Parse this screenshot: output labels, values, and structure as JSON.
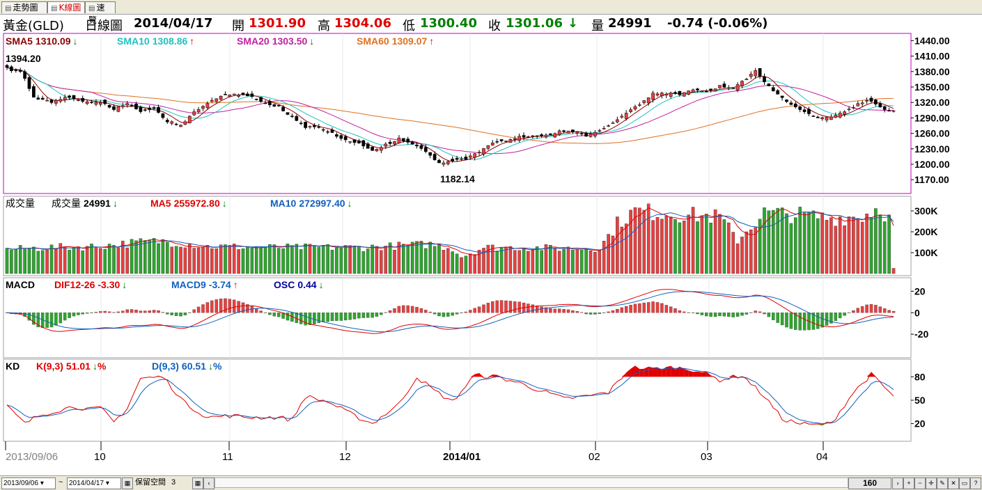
{
  "tabs": [
    {
      "label": "走勢圖",
      "active": false
    },
    {
      "label": "K線圖",
      "active": true
    },
    {
      "label": "速覽",
      "active": false
    }
  ],
  "header": {
    "symbol": "黃金(GLD)",
    "chart_type": "日線圖",
    "date": "2014/04/17",
    "open_label": "開",
    "open": "1301.90",
    "high_label": "高",
    "high": "1304.06",
    "low_label": "低",
    "low": "1300.40",
    "close_label": "收",
    "close": "1301.06",
    "close_arrow": "↓",
    "volume_label": "量",
    "volume": "24991",
    "change": "-0.74 (-0.06%)"
  },
  "colors": {
    "up": "#e84040",
    "down": "#000000",
    "vol_up": "#e84040",
    "vol_down": "#2ea62e",
    "sma5": "#8b0000",
    "sma10": "#20c0c0",
    "sma20": "#c020a0",
    "sma60": "#e07020",
    "frame": "#c000c0",
    "dif": "#e00000",
    "macd9": "#1060c0",
    "osc": "#0000a0",
    "k": "#e00000",
    "d": "#1060c0"
  },
  "price_panel": {
    "legend": [
      {
        "label": "SMA5",
        "value": "1310.09",
        "arrow": "↓"
      },
      {
        "label": "SMA10",
        "value": "1308.86",
        "arrow": "↑"
      },
      {
        "label": "SMA20",
        "value": "1303.50",
        "arrow": "↓"
      },
      {
        "label": "SMA60",
        "value": "1309.07",
        "arrow": "↑"
      }
    ],
    "high_marker": "1394.20",
    "low_marker": "1182.14"
  },
  "volume_panel": {
    "title": "成交量",
    "legend": [
      {
        "label": "成交量",
        "value": "24991",
        "arrow": "↓"
      },
      {
        "label": "MA5",
        "value": "255972.80",
        "arrow": "↓"
      },
      {
        "label": "MA10",
        "value": "272997.40",
        "arrow": "↓"
      }
    ]
  },
  "macd_panel": {
    "title": "MACD",
    "legend": [
      {
        "label": "DIF12-26",
        "value": "-3.30",
        "arrow": "↓"
      },
      {
        "label": "MACD9",
        "value": "-3.74",
        "arrow": "↑"
      },
      {
        "label": "OSC",
        "value": "0.44",
        "arrow": "↓"
      }
    ]
  },
  "kd_panel": {
    "title": "KD",
    "legend": [
      {
        "label": "K(9,3)",
        "value": "51.01",
        "arrow": "↓",
        "suffix": "%"
      },
      {
        "label": "D(9,3)",
        "value": "60.51",
        "arrow": "↓",
        "suffix": "%"
      }
    ]
  },
  "bottom": {
    "start_date": "2013/09/06",
    "end_date": "2014/04/17",
    "tilde": "~",
    "reserve_label": "保留空間",
    "reserve_value": "3",
    "count": "160"
  },
  "chart_data": {
    "type": "candlestick",
    "title": "黃金(GLD) 日線圖",
    "x_labels": [
      "2013/09/06",
      "10",
      "11",
      "12",
      "2014/01",
      "02",
      "03",
      "04"
    ],
    "price_axis": {
      "ylim": [
        1150,
        1450
      ],
      "ticks": [
        "1440.00",
        "1410.00",
        "1380.00",
        "1350.00",
        "1320.00",
        "1290.00",
        "1260.00",
        "1230.00",
        "1200.00",
        "1170.00"
      ]
    },
    "volume_axis": {
      "ylim": [
        0,
        360000
      ],
      "ticks": [
        "300K",
        "200K",
        "100K"
      ]
    },
    "macd_axis": {
      "ylim": [
        -40,
        30
      ],
      "ticks": [
        "20",
        "0",
        "-20"
      ]
    },
    "kd_axis": {
      "ylim": [
        0,
        100
      ],
      "ticks": [
        "80",
        "50",
        "20"
      ]
    },
    "close_anchors": [
      [
        0,
        1388
      ],
      [
        3,
        1380
      ],
      [
        6,
        1330
      ],
      [
        10,
        1322
      ],
      [
        14,
        1330
      ],
      [
        17,
        1322
      ],
      [
        21,
        1320
      ],
      [
        24,
        1306
      ],
      [
        27,
        1318
      ],
      [
        30,
        1302
      ],
      [
        33,
        1308
      ],
      [
        36,
        1282
      ],
      [
        39,
        1276
      ],
      [
        42,
        1302
      ],
      [
        45,
        1318
      ],
      [
        48,
        1332
      ],
      [
        52,
        1338
      ],
      [
        55,
        1330
      ],
      [
        58,
        1318
      ],
      [
        61,
        1310
      ],
      [
        64,
        1290
      ],
      [
        67,
        1274
      ],
      [
        70,
        1272
      ],
      [
        73,
        1258
      ],
      [
        76,
        1246
      ],
      [
        79,
        1240
      ],
      [
        82,
        1226
      ],
      [
        85,
        1236
      ],
      [
        88,
        1248
      ],
      [
        91,
        1240
      ],
      [
        94,
        1226
      ],
      [
        97,
        1200
      ],
      [
        100,
        1208
      ],
      [
        103,
        1212
      ],
      [
        106,
        1225
      ],
      [
        109,
        1242
      ],
      [
        112,
        1247
      ],
      [
        115,
        1251
      ],
      [
        118,
        1255
      ],
      [
        121,
        1255
      ],
      [
        124,
        1262
      ],
      [
        127,
        1266
      ],
      [
        130,
        1256
      ],
      [
        133,
        1265
      ],
      [
        136,
        1280
      ],
      [
        139,
        1300
      ],
      [
        142,
        1318
      ],
      [
        145,
        1335
      ],
      [
        148,
        1340
      ],
      [
        151,
        1336
      ],
      [
        154,
        1346
      ],
      [
        157,
        1340
      ],
      [
        160,
        1350
      ],
      [
        163,
        1348
      ],
      [
        166,
        1368
      ],
      [
        168,
        1382
      ],
      [
        170,
        1360
      ],
      [
        173,
        1336
      ],
      [
        176,
        1316
      ],
      [
        179,
        1302
      ],
      [
        182,
        1290
      ],
      [
        185,
        1292
      ],
      [
        188,
        1302
      ],
      [
        191,
        1318
      ],
      [
        194,
        1322
      ],
      [
        197,
        1306
      ],
      [
        199,
        1301
      ]
    ],
    "volume_anchors": [
      [
        0,
        115
      ],
      [
        10,
        125
      ],
      [
        20,
        130
      ],
      [
        30,
        150
      ],
      [
        35,
        155
      ],
      [
        45,
        130
      ],
      [
        60,
        125
      ],
      [
        80,
        125
      ],
      [
        95,
        140
      ],
      [
        100,
        120
      ],
      [
        102,
        80
      ],
      [
        107,
        125
      ],
      [
        115,
        125
      ],
      [
        125,
        120
      ],
      [
        133,
        120
      ],
      [
        137,
        240
      ],
      [
        141,
        300
      ],
      [
        150,
        285
      ],
      [
        160,
        270
      ],
      [
        164,
        160
      ],
      [
        170,
        290
      ],
      [
        178,
        280
      ],
      [
        185,
        265
      ],
      [
        192,
        275
      ],
      [
        196,
        320
      ],
      [
        198,
        260
      ],
      [
        199,
        25
      ]
    ],
    "kd_anchors": [
      [
        0,
        42
      ],
      [
        4,
        20
      ],
      [
        7,
        30
      ],
      [
        10,
        35
      ],
      [
        15,
        42
      ],
      [
        19,
        38
      ],
      [
        21,
        40
      ],
      [
        24,
        22
      ],
      [
        27,
        40
      ],
      [
        30,
        78
      ],
      [
        35,
        80
      ],
      [
        40,
        46
      ],
      [
        45,
        28
      ],
      [
        50,
        30
      ],
      [
        55,
        28
      ],
      [
        61,
        28
      ],
      [
        64,
        25
      ],
      [
        67,
        55
      ],
      [
        72,
        48
      ],
      [
        78,
        30
      ],
      [
        82,
        20
      ],
      [
        88,
        45
      ],
      [
        92,
        80
      ],
      [
        96,
        62
      ],
      [
        100,
        48
      ],
      [
        105,
        82
      ],
      [
        110,
        80
      ],
      [
        115,
        72
      ],
      [
        120,
        62
      ],
      [
        125,
        52
      ],
      [
        130,
        55
      ],
      [
        135,
        60
      ],
      [
        140,
        92
      ],
      [
        145,
        90
      ],
      [
        150,
        92
      ],
      [
        155,
        88
      ],
      [
        160,
        76
      ],
      [
        165,
        82
      ],
      [
        170,
        55
      ],
      [
        174,
        26
      ],
      [
        178,
        20
      ],
      [
        181,
        18
      ],
      [
        185,
        20
      ],
      [
        190,
        60
      ],
      [
        194,
        83
      ],
      [
        199,
        55
      ]
    ],
    "series": [
      {
        "name": "SMA5",
        "value": 1310.09
      },
      {
        "name": "SMA10",
        "value": 1308.86
      },
      {
        "name": "SMA20",
        "value": 1303.5
      },
      {
        "name": "SMA60",
        "value": 1309.07
      }
    ],
    "summary": {
      "open": 1301.9,
      "high": 1304.06,
      "low": 1300.4,
      "close": 1301.06,
      "volume": 24991,
      "period_high": 1394.2,
      "period_low": 1182.14
    }
  }
}
